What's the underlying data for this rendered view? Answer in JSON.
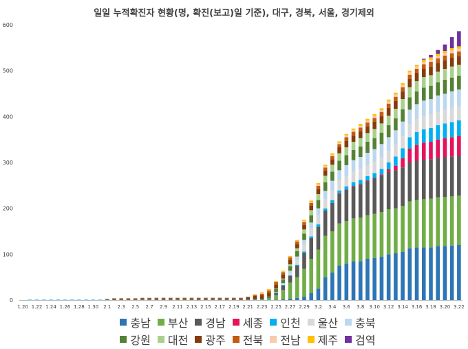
{
  "chart_data": {
    "type": "bar",
    "stacked": true,
    "title": "일일 누적확진자 현황(명, 확진(보고)일 기준), 대구, 경북, 서울, 경기제외",
    "xlabel": "",
    "ylabel": "",
    "ylim": [
      0,
      600
    ],
    "yticks": [
      0,
      100,
      200,
      300,
      400,
      500,
      600
    ],
    "grid": false,
    "legend_position": "bottom",
    "x_tick_labels": [
      "1.20",
      "1.22",
      "1.24",
      "1.26",
      "1.28",
      "1.30",
      "2.1",
      "2.3",
      "2.5",
      "2.7",
      "2.9",
      "2.11",
      "2.13",
      "2.15",
      "2.17",
      "2.19",
      "2.21",
      "2.23",
      "2.25",
      "2.27",
      "2.29",
      "3.2",
      "3.4",
      "3.6",
      "3.8",
      "3.10",
      "3.12",
      "3.14",
      "3.16",
      "3.18",
      "3.20",
      "3.22"
    ],
    "categories": [
      "1.20",
      "1.21",
      "1.22",
      "1.23",
      "1.24",
      "1.25",
      "1.26",
      "1.27",
      "1.28",
      "1.29",
      "1.30",
      "1.31",
      "2.1",
      "2.2",
      "2.3",
      "2.4",
      "2.5",
      "2.6",
      "2.7",
      "2.8",
      "2.9",
      "2.10",
      "2.11",
      "2.12",
      "2.13",
      "2.14",
      "2.15",
      "2.16",
      "2.17",
      "2.18",
      "2.19",
      "2.20",
      "2.21",
      "2.22",
      "2.23",
      "2.24",
      "2.25",
      "2.26",
      "2.27",
      "2.28",
      "2.29",
      "3.1",
      "3.2",
      "3.3",
      "3.4",
      "3.5",
      "3.6",
      "3.7",
      "3.8",
      "3.9",
      "3.10",
      "3.11",
      "3.12",
      "3.13",
      "3.14",
      "3.15",
      "3.16",
      "3.17",
      "3.18",
      "3.19",
      "3.20",
      "3.21",
      "3.22"
    ],
    "series": [
      {
        "name": "충남",
        "color": "#2E75B6",
        "values": [
          0,
          0,
          0,
          0,
          0,
          0,
          0,
          0,
          0,
          0,
          0,
          0,
          0,
          0,
          0,
          0,
          0,
          0,
          0,
          0,
          0,
          0,
          0,
          0,
          0,
          0,
          0,
          0,
          0,
          0,
          0,
          0,
          0,
          0,
          0,
          0,
          1,
          2,
          3,
          5,
          8,
          15,
          25,
          50,
          60,
          75,
          80,
          85,
          85,
          90,
          92,
          95,
          100,
          102,
          105,
          113,
          115,
          115,
          115,
          118,
          118,
          119,
          120
        ]
      },
      {
        "name": "부산",
        "color": "#70AD47",
        "values": [
          0,
          0,
          0,
          0,
          0,
          0,
          0,
          0,
          0,
          0,
          0,
          0,
          0,
          0,
          0,
          0,
          0,
          0,
          0,
          0,
          0,
          0,
          0,
          0,
          0,
          0,
          0,
          0,
          0,
          0,
          0,
          0,
          0,
          0,
          0,
          3,
          10,
          20,
          35,
          45,
          60,
          75,
          85,
          90,
          90,
          92,
          92,
          93,
          95,
          95,
          96,
          97,
          98,
          98,
          100,
          102,
          103,
          105,
          106,
          106,
          107,
          107,
          108
        ]
      },
      {
        "name": "경남",
        "color": "#595959",
        "values": [
          0,
          0,
          0,
          0,
          0,
          0,
          0,
          0,
          0,
          0,
          0,
          0,
          0,
          0,
          0,
          0,
          0,
          0,
          0,
          0,
          0,
          0,
          0,
          0,
          0,
          0,
          0,
          0,
          0,
          0,
          0,
          0,
          0,
          0,
          0,
          0,
          5,
          10,
          15,
          25,
          35,
          45,
          50,
          55,
          62,
          65,
          68,
          70,
          72,
          75,
          78,
          80,
          82,
          83,
          84,
          85,
          85,
          86,
          86,
          86,
          87,
          87,
          87
        ]
      },
      {
        "name": "세종",
        "color": "#E5135D",
        "values": [
          0,
          0,
          0,
          0,
          0,
          0,
          0,
          0,
          0,
          0,
          0,
          0,
          0,
          0,
          0,
          0,
          0,
          0,
          0,
          0,
          0,
          0,
          0,
          0,
          0,
          0,
          0,
          0,
          0,
          0,
          0,
          0,
          0,
          0,
          0,
          0,
          0,
          0,
          0,
          0,
          0,
          0,
          0,
          0,
          0,
          1,
          1,
          1,
          1,
          1,
          1,
          2,
          5,
          10,
          20,
          30,
          35,
          37,
          38,
          40,
          41,
          42,
          43
        ]
      },
      {
        "name": "인천",
        "color": "#00B0F0",
        "values": [
          0,
          1,
          1,
          1,
          1,
          1,
          1,
          1,
          1,
          1,
          1,
          1,
          1,
          1,
          1,
          1,
          1,
          1,
          1,
          1,
          1,
          1,
          1,
          1,
          1,
          1,
          1,
          1,
          1,
          1,
          1,
          1,
          1,
          1,
          1,
          1,
          1,
          1,
          1,
          2,
          3,
          4,
          5,
          5,
          6,
          6,
          7,
          8,
          9,
          9,
          10,
          12,
          15,
          20,
          22,
          25,
          28,
          29,
          30,
          31,
          32,
          33,
          34
        ]
      },
      {
        "name": "울산",
        "color": "#D9D9D9",
        "values": [
          0,
          0,
          0,
          0,
          0,
          0,
          0,
          0,
          0,
          0,
          0,
          0,
          0,
          0,
          0,
          0,
          0,
          0,
          0,
          0,
          0,
          0,
          0,
          0,
          0,
          0,
          0,
          0,
          0,
          0,
          0,
          0,
          0,
          0,
          0,
          0,
          0,
          2,
          5,
          10,
          15,
          18,
          20,
          20,
          22,
          22,
          22,
          23,
          24,
          24,
          24,
          25,
          25,
          26,
          27,
          28,
          28,
          29,
          29,
          30,
          30,
          31,
          31
        ]
      },
      {
        "name": "충북",
        "color": "#BDD7EE",
        "values": [
          0,
          0,
          0,
          0,
          0,
          0,
          0,
          0,
          0,
          0,
          0,
          0,
          0,
          0,
          0,
          0,
          0,
          0,
          0,
          0,
          0,
          0,
          0,
          0,
          0,
          0,
          0,
          0,
          0,
          0,
          0,
          0,
          0,
          0,
          0,
          0,
          1,
          2,
          5,
          8,
          10,
          12,
          15,
          18,
          20,
          22,
          24,
          25,
          26,
          27,
          28,
          29,
          30,
          31,
          31,
          32,
          33,
          34,
          34,
          35,
          35,
          36,
          36
        ]
      },
      {
        "name": "강원",
        "color": "#548235",
        "values": [
          0,
          0,
          0,
          0,
          0,
          0,
          0,
          0,
          0,
          0,
          0,
          0,
          0,
          0,
          0,
          0,
          0,
          0,
          0,
          0,
          0,
          0,
          0,
          0,
          0,
          0,
          0,
          0,
          0,
          0,
          0,
          0,
          0,
          1,
          2,
          4,
          6,
          8,
          10,
          12,
          14,
          16,
          18,
          19,
          20,
          21,
          22,
          22,
          23,
          24,
          24,
          25,
          26,
          26,
          27,
          27,
          28,
          28,
          29,
          29,
          30,
          30,
          30
        ]
      },
      {
        "name": "대전",
        "color": "#A9D18E",
        "values": [
          0,
          0,
          0,
          0,
          0,
          0,
          0,
          0,
          0,
          0,
          0,
          0,
          0,
          0,
          0,
          0,
          0,
          0,
          0,
          0,
          0,
          0,
          0,
          0,
          0,
          0,
          0,
          0,
          0,
          0,
          0,
          0,
          0,
          0,
          0,
          0,
          1,
          2,
          4,
          6,
          9,
          11,
          13,
          14,
          15,
          16,
          17,
          18,
          18,
          19,
          20,
          20,
          21,
          21,
          22,
          22,
          22,
          23,
          23,
          23,
          24,
          24,
          24
        ]
      },
      {
        "name": "광주",
        "color": "#843C0C",
        "values": [
          0,
          0,
          0,
          0,
          0,
          0,
          0,
          0,
          0,
          0,
          0,
          0,
          1,
          2,
          2,
          2,
          2,
          3,
          3,
          3,
          3,
          3,
          3,
          3,
          3,
          3,
          3,
          3,
          3,
          3,
          3,
          3,
          5,
          7,
          8,
          9,
          9,
          9,
          9,
          9,
          10,
          10,
          11,
          11,
          12,
          13,
          14,
          14,
          15,
          15,
          16,
          16,
          17,
          17,
          17,
          18,
          18,
          18,
          19,
          19,
          19,
          19,
          19
        ]
      },
      {
        "name": "전북",
        "color": "#C55A11",
        "values": [
          0,
          0,
          0,
          0,
          0,
          0,
          0,
          0,
          0,
          0,
          0,
          0,
          1,
          1,
          1,
          1,
          1,
          1,
          1,
          1,
          1,
          1,
          1,
          1,
          1,
          1,
          1,
          1,
          1,
          1,
          1,
          1,
          1,
          2,
          3,
          4,
          5,
          5,
          6,
          6,
          6,
          6,
          7,
          7,
          7,
          7,
          8,
          8,
          8,
          8,
          8,
          9,
          9,
          9,
          9,
          9,
          9,
          10,
          10,
          10,
          10,
          10,
          10
        ]
      },
      {
        "name": "전남",
        "color": "#F8CBAD",
        "values": [
          0,
          0,
          0,
          0,
          0,
          0,
          0,
          0,
          0,
          0,
          0,
          0,
          0,
          0,
          0,
          0,
          0,
          0,
          0,
          1,
          1,
          1,
          1,
          1,
          1,
          1,
          1,
          1,
          1,
          1,
          1,
          1,
          1,
          1,
          1,
          1,
          1,
          1,
          1,
          1,
          2,
          2,
          3,
          3,
          3,
          3,
          4,
          4,
          4,
          4,
          4,
          4,
          5,
          5,
          5,
          5,
          5,
          5,
          5,
          5,
          5,
          6,
          6
        ]
      },
      {
        "name": "제주",
        "color": "#FFC000",
        "values": [
          0,
          0,
          0,
          0,
          0,
          0,
          0,
          0,
          0,
          0,
          0,
          0,
          0,
          0,
          0,
          0,
          0,
          0,
          0,
          0,
          0,
          0,
          0,
          0,
          0,
          0,
          0,
          0,
          0,
          0,
          0,
          0,
          0,
          1,
          2,
          2,
          2,
          2,
          2,
          2,
          3,
          3,
          3,
          3,
          3,
          3,
          3,
          3,
          4,
          4,
          4,
          4,
          4,
          4,
          4,
          4,
          4,
          5,
          5,
          5,
          5,
          5,
          5
        ]
      },
      {
        "name": "검역",
        "color": "#7030A0",
        "values": [
          0,
          0,
          0,
          0,
          0,
          0,
          0,
          0,
          0,
          0,
          0,
          0,
          0,
          0,
          0,
          0,
          0,
          0,
          0,
          0,
          0,
          0,
          0,
          0,
          0,
          0,
          0,
          0,
          0,
          0,
          0,
          0,
          0,
          0,
          0,
          0,
          0,
          0,
          0,
          0,
          0,
          0,
          0,
          0,
          0,
          0,
          0,
          0,
          0,
          0,
          0,
          0,
          0,
          0,
          0,
          0,
          0,
          2,
          5,
          8,
          14,
          24,
          33
        ]
      }
    ]
  }
}
